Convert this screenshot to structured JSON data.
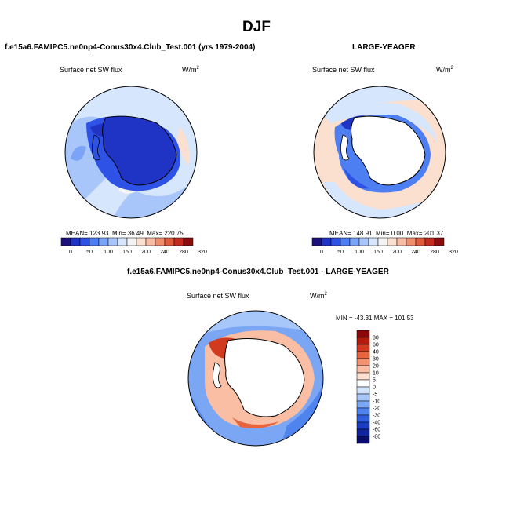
{
  "page": {
    "title": "DJF"
  },
  "colors": {
    "land_white": "#ffffff",
    "coast": "#000000",
    "scale_abs": [
      "#1a127a",
      "#1f33c4",
      "#2e52e6",
      "#4d7ef2",
      "#7ba4f7",
      "#a8c6fa",
      "#d5e6fd",
      "#f4f4f4",
      "#fbe0cf",
      "#f7bda3",
      "#ee8e6d",
      "#e05a3c",
      "#c42b1e",
      "#8c0b0b"
    ],
    "scale_diff": [
      "#0b0b6e",
      "#10229c",
      "#1a3bc2",
      "#2f5fde",
      "#4f83ee",
      "#7aa6f4",
      "#a7c6fa",
      "#d3e4fd",
      "#ffffff",
      "#fde0cf",
      "#f9bea3",
      "#f39170",
      "#e8643f",
      "#d23a1f",
      "#b41a0c",
      "#8a0808"
    ]
  },
  "panels": [
    {
      "id": "test",
      "title": "f.e15a6.FAMIPC5.ne0np4-Conus30x4.Club_Test.001 (yrs 1979-2004)",
      "left_label": "Surface net SW flux",
      "units": "W/m",
      "units_sup": "2",
      "stats": {
        "mean_label": "MEAN=",
        "mean": "123.93",
        "min_label": "Min=",
        "min": "36.49",
        "max_label": "Max=",
        "max": "220.75"
      }
    },
    {
      "id": "control",
      "title": "LARGE-YEAGER",
      "left_label": "Surface net SW flux",
      "units": "W/m",
      "units_sup": "2",
      "stats": {
        "mean_label": "MEAN=",
        "mean": "148.91",
        "min_label": "Min=",
        "min": "0.00",
        "max_label": "Max=",
        "max": "201.37"
      }
    },
    {
      "id": "diff",
      "title": "f.e15a6.FAMIPC5.ne0np4-Conus30x4.Club_Test.001 - LARGE-YEAGER",
      "left_label": "Surface net SW flux",
      "units": "W/m",
      "units_sup": "2",
      "stats": {
        "text": "MIN = -43.31  MAX = 101.53"
      }
    }
  ],
  "chart_data": [
    {
      "type": "heatmap",
      "projection": "south-polar-stereographic",
      "title": "f.e15a6.FAMIPC5.ne0np4-Conus30x4.Club_Test.001 (yrs 1979-2004)",
      "variable": "Surface net SW flux",
      "units": "W/m2",
      "stats": {
        "mean": 123.93,
        "min": 36.49,
        "max": 220.75
      },
      "colorbar": {
        "orientation": "horizontal",
        "levels": [
          0,
          50,
          100,
          150,
          200,
          240,
          280,
          320
        ]
      }
    },
    {
      "type": "heatmap",
      "projection": "south-polar-stereographic",
      "title": "LARGE-YEAGER",
      "variable": "Surface net SW flux",
      "units": "W/m2",
      "stats": {
        "mean": 148.91,
        "min": 0.0,
        "max": 201.37
      },
      "colorbar": {
        "orientation": "horizontal",
        "levels": [
          0,
          50,
          100,
          150,
          200,
          240,
          280,
          320
        ]
      }
    },
    {
      "type": "heatmap",
      "projection": "south-polar-stereographic",
      "title": "f.e15a6.FAMIPC5.ne0np4-Conus30x4.Club_Test.001 - LARGE-YEAGER",
      "variable": "Surface net SW flux",
      "units": "W/m2",
      "stats": {
        "min": -43.31,
        "max": 101.53
      },
      "colorbar": {
        "orientation": "vertical",
        "levels": [
          80,
          60,
          40,
          30,
          20,
          10,
          5,
          0,
          -5,
          -10,
          -20,
          -30,
          -40,
          -60,
          -80
        ]
      }
    }
  ]
}
